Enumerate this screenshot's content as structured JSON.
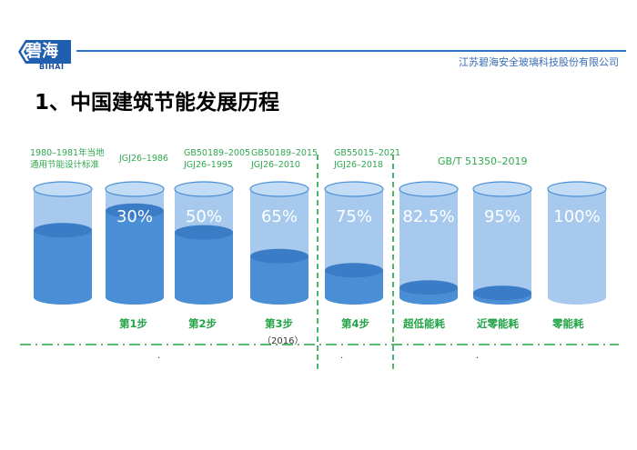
{
  "header": {
    "logo_cn": "碧海",
    "logo_en": "BIHAI",
    "company": "江苏碧海安全玻璃科技股份有限公司"
  },
  "title": "1、中国建筑节能发展历程",
  "standards": {
    "s1_line1": "1980–1981年当地",
    "s1_line2": "通用节能设计标准",
    "s2": "JGJ26–1986",
    "s3_line1": "GB50189–2005",
    "s3_line2": "JGJ26–1995",
    "s4_line1": "GB50189–2015",
    "s4_line2": "JGJ26–2010",
    "s5_line1": "GB55015–2021",
    "s5_line2": "JGJ26–2018",
    "s6": "GB/T 51350–2019"
  },
  "cylinders": [
    {
      "percent": "",
      "fill_fraction": 0.62
    },
    {
      "percent": "30%",
      "fill_fraction": 0.8
    },
    {
      "percent": "50%",
      "fill_fraction": 0.6
    },
    {
      "percent": "65%",
      "fill_fraction": 0.38
    },
    {
      "percent": "75%",
      "fill_fraction": 0.25
    },
    {
      "percent": "82.5%",
      "fill_fraction": 0.09
    },
    {
      "percent": "95%",
      "fill_fraction": 0.04
    },
    {
      "percent": "100%",
      "fill_fraction": 0.0
    }
  ],
  "steps": {
    "step1": "第1步",
    "step2": "第2步",
    "step3": "第3步",
    "step3_year": "（2016）",
    "step4": "第4步",
    "step5": "超低能耗",
    "step6": "近零能耗",
    "step7": "零能耗"
  },
  "dots": {
    "d1": ".",
    "d2": ".",
    "d3": "."
  },
  "colors": {
    "water": "#4a8fd6",
    "water_dark": "#3b7cc6",
    "glass": "#a7c9ee",
    "glass_top": "#c3dcf5",
    "accent_green": "#22a346",
    "header_blue": "#2e75c9"
  }
}
